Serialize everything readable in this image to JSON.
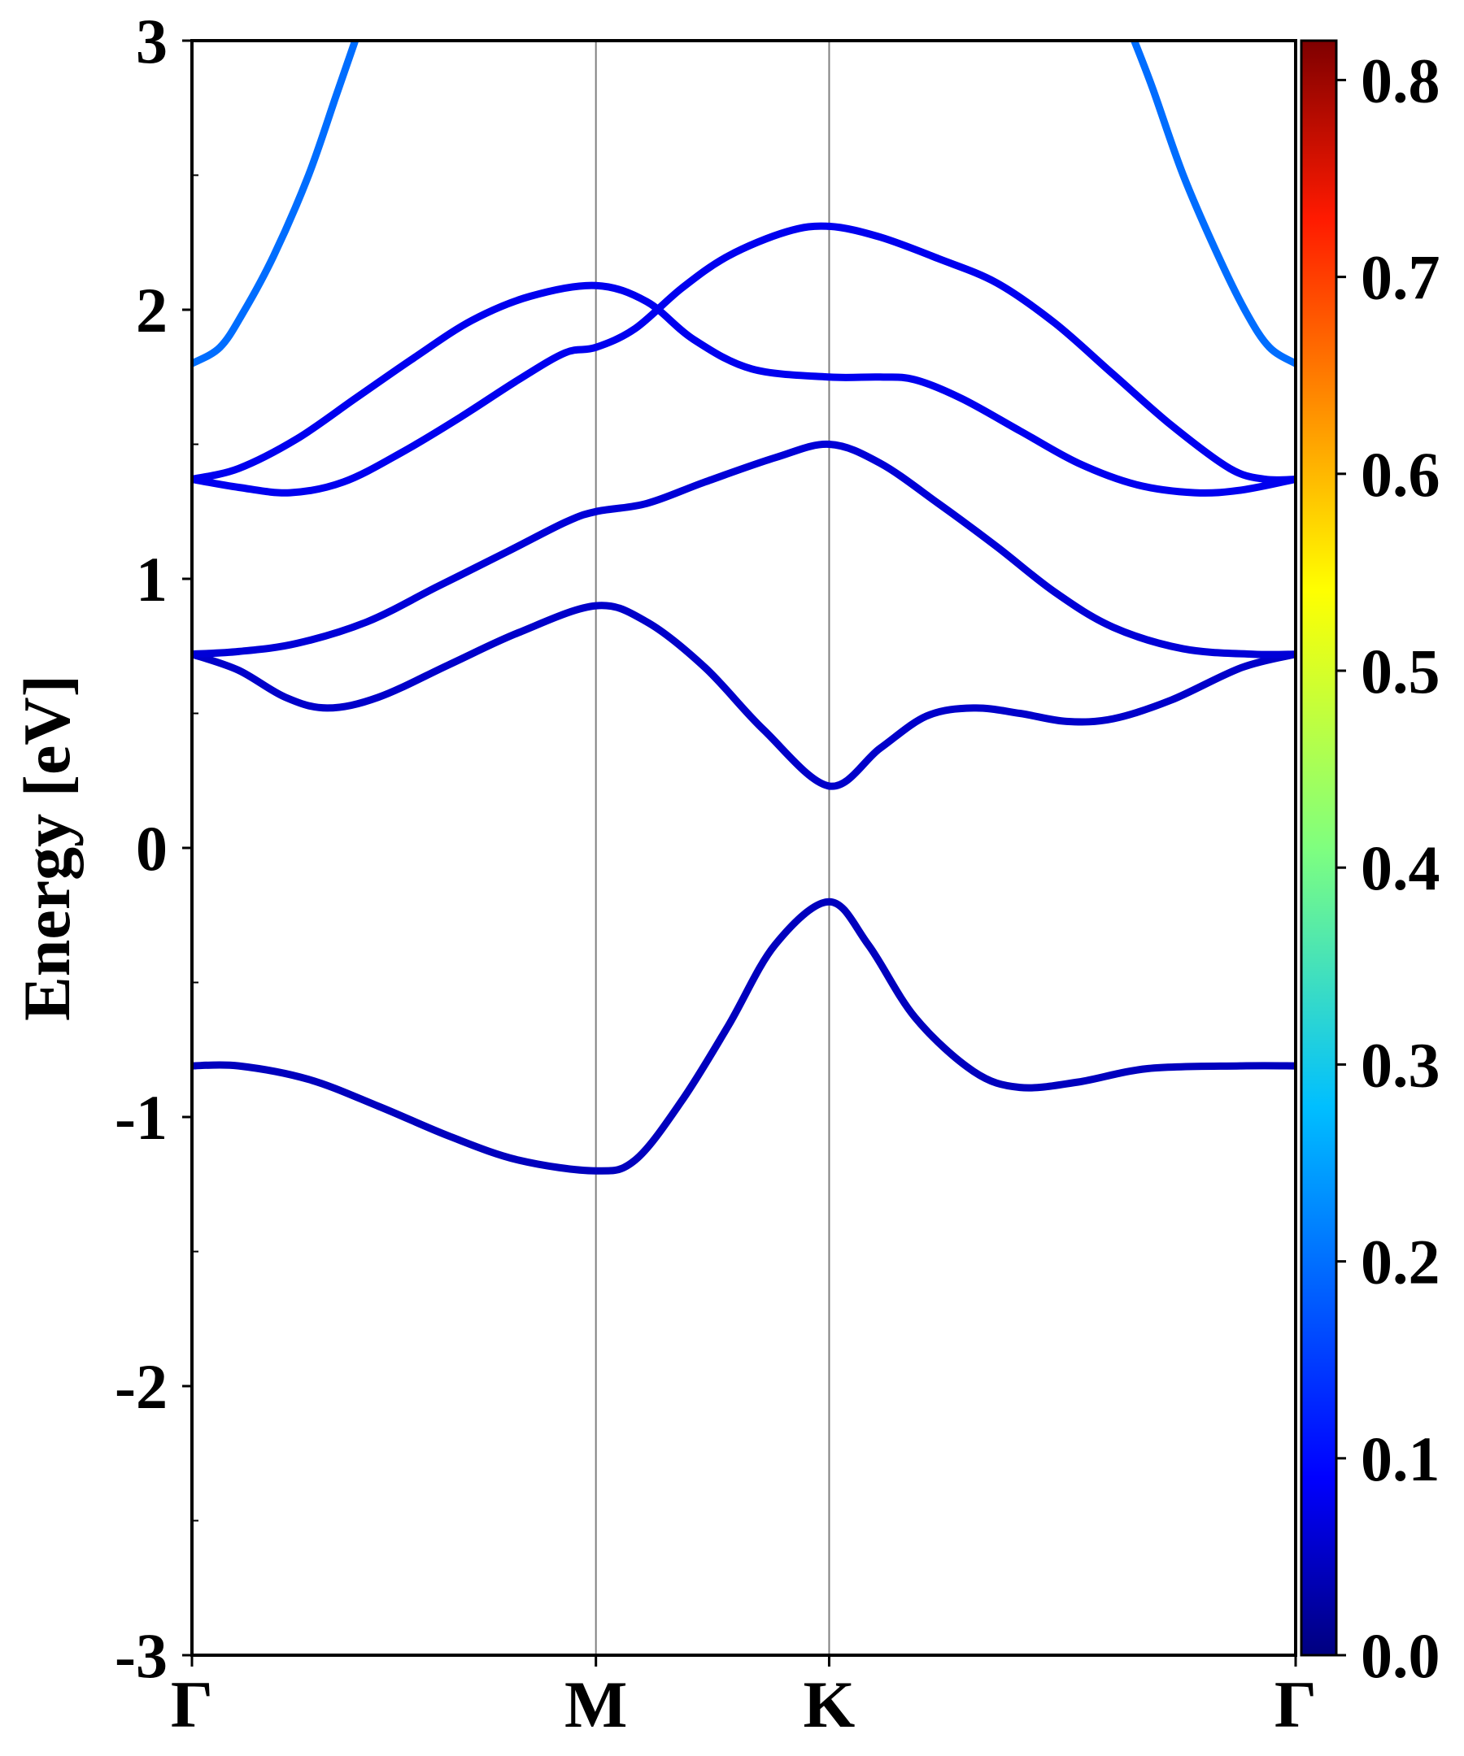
{
  "chart_data": {
    "type": "line",
    "subtype": "electronic band structure (projected, color-mapped weight)",
    "ylabel": "Energy [eV]",
    "xlabel": "",
    "ylim": [
      -3,
      3
    ],
    "y_ticks": [
      {
        "value": 3,
        "label": "3"
      },
      {
        "value": 2,
        "label": "2"
      },
      {
        "value": 1,
        "label": "1"
      },
      {
        "value": 0,
        "label": "0"
      },
      {
        "value": -1,
        "label": "-1"
      },
      {
        "value": -2,
        "label": "-2"
      },
      {
        "value": -3,
        "label": "-3"
      }
    ],
    "y_minor_ticks": [
      2.5,
      1.5,
      0.5,
      -0.5,
      -1.5,
      -2.5
    ],
    "xlim": [
      0,
      4.732
    ],
    "high_symmetry_points": [
      {
        "label": "Γ",
        "x": 0
      },
      {
        "label": "M",
        "x": 1.732
      },
      {
        "label": "K",
        "x": 2.732
      },
      {
        "label": "Γ",
        "x": 4.732
      }
    ],
    "colorbar": {
      "colormap": "jet",
      "range": [
        0.0,
        0.82
      ],
      "ticks": [
        {
          "value": 0.0,
          "label": "0.0"
        },
        {
          "value": 0.1,
          "label": "0.1"
        },
        {
          "value": 0.2,
          "label": "0.2"
        },
        {
          "value": 0.3,
          "label": "0.3"
        },
        {
          "value": 0.4,
          "label": "0.4"
        },
        {
          "value": 0.5,
          "label": "0.5"
        },
        {
          "value": 0.6,
          "label": "0.6"
        },
        {
          "value": 0.7,
          "label": "0.7"
        },
        {
          "value": 0.8,
          "label": "0.8"
        }
      ]
    },
    "series": [
      {
        "weight": 0.05,
        "points": [
          [
            0,
            -0.81
          ],
          [
            0.2,
            -0.81
          ],
          [
            0.5,
            -0.86
          ],
          [
            0.8,
            -0.96
          ],
          [
            1.1,
            -1.07
          ],
          [
            1.4,
            -1.16
          ],
          [
            1.732,
            -1.2
          ],
          [
            1.9,
            -1.16
          ],
          [
            2.1,
            -0.94
          ],
          [
            2.3,
            -0.66
          ],
          [
            2.5,
            -0.36
          ],
          [
            2.732,
            -0.2
          ],
          [
            2.9,
            -0.36
          ],
          [
            3.1,
            -0.63
          ],
          [
            3.35,
            -0.83
          ],
          [
            3.55,
            -0.89
          ],
          [
            3.8,
            -0.87
          ],
          [
            4.1,
            -0.82
          ],
          [
            4.5,
            -0.81
          ],
          [
            4.732,
            -0.81
          ]
        ]
      },
      {
        "weight": 0.06,
        "points": [
          [
            0,
            0.72
          ],
          [
            0.2,
            0.66
          ],
          [
            0.4,
            0.56
          ],
          [
            0.58,
            0.52
          ],
          [
            0.8,
            0.56
          ],
          [
            1.1,
            0.68
          ],
          [
            1.4,
            0.8
          ],
          [
            1.732,
            0.9
          ],
          [
            1.95,
            0.84
          ],
          [
            2.2,
            0.67
          ],
          [
            2.45,
            0.44
          ],
          [
            2.732,
            0.23
          ],
          [
            2.95,
            0.37
          ],
          [
            3.15,
            0.49
          ],
          [
            3.35,
            0.52
          ],
          [
            3.55,
            0.5
          ],
          [
            3.75,
            0.47
          ],
          [
            3.95,
            0.48
          ],
          [
            4.2,
            0.55
          ],
          [
            4.5,
            0.67
          ],
          [
            4.732,
            0.72
          ]
        ]
      },
      {
        "weight": 0.07,
        "points": [
          [
            0,
            0.72
          ],
          [
            0.2,
            0.73
          ],
          [
            0.45,
            0.76
          ],
          [
            0.75,
            0.84
          ],
          [
            1.05,
            0.97
          ],
          [
            1.35,
            1.1
          ],
          [
            1.6,
            1.21
          ],
          [
            1.732,
            1.25
          ],
          [
            1.95,
            1.28
          ],
          [
            2.2,
            1.36
          ],
          [
            2.5,
            1.45
          ],
          [
            2.732,
            1.5
          ],
          [
            2.95,
            1.43
          ],
          [
            3.2,
            1.28
          ],
          [
            3.45,
            1.12
          ],
          [
            3.7,
            0.95
          ],
          [
            3.95,
            0.82
          ],
          [
            4.25,
            0.74
          ],
          [
            4.55,
            0.72
          ],
          [
            4.732,
            0.72
          ]
        ]
      },
      {
        "weight": 0.09,
        "points": [
          [
            0,
            1.37
          ],
          [
            0.2,
            1.34
          ],
          [
            0.42,
            1.32
          ],
          [
            0.65,
            1.36
          ],
          [
            0.9,
            1.47
          ],
          [
            1.15,
            1.6
          ],
          [
            1.4,
            1.74
          ],
          [
            1.6,
            1.84
          ],
          [
            1.732,
            1.86
          ],
          [
            1.9,
            1.93
          ],
          [
            2.1,
            2.08
          ],
          [
            2.3,
            2.2
          ],
          [
            2.55,
            2.29
          ],
          [
            2.732,
            2.31
          ],
          [
            2.95,
            2.27
          ],
          [
            3.2,
            2.19
          ],
          [
            3.45,
            2.1
          ],
          [
            3.7,
            1.95
          ],
          [
            3.95,
            1.76
          ],
          [
            4.2,
            1.57
          ],
          [
            4.45,
            1.41
          ],
          [
            4.6,
            1.37
          ],
          [
            4.732,
            1.37
          ]
        ]
      },
      {
        "weight": 0.09,
        "points": [
          [
            0,
            1.37
          ],
          [
            0.2,
            1.41
          ],
          [
            0.45,
            1.52
          ],
          [
            0.7,
            1.67
          ],
          [
            0.95,
            1.82
          ],
          [
            1.2,
            1.96
          ],
          [
            1.45,
            2.05
          ],
          [
            1.732,
            2.09
          ],
          [
            1.95,
            2.03
          ],
          [
            2.15,
            1.89
          ],
          [
            2.4,
            1.78
          ],
          [
            2.732,
            1.75
          ],
          [
            2.95,
            1.75
          ],
          [
            3.1,
            1.74
          ],
          [
            3.3,
            1.67
          ],
          [
            3.55,
            1.55
          ],
          [
            3.8,
            1.43
          ],
          [
            4.05,
            1.35
          ],
          [
            4.3,
            1.32
          ],
          [
            4.5,
            1.33
          ],
          [
            4.732,
            1.37
          ]
        ]
      },
      {
        "weight": 0.19,
        "points": [
          [
            0,
            1.8
          ],
          [
            0.12,
            1.86
          ],
          [
            0.22,
            1.99
          ],
          [
            0.35,
            2.2
          ],
          [
            0.5,
            2.5
          ],
          [
            0.62,
            2.8
          ],
          [
            0.7,
            3.0
          ]
        ]
      },
      {
        "weight": 0.19,
        "points": [
          [
            4.04,
            3.0
          ],
          [
            4.12,
            2.82
          ],
          [
            4.25,
            2.5
          ],
          [
            4.4,
            2.2
          ],
          [
            4.52,
            1.99
          ],
          [
            4.62,
            1.86
          ],
          [
            4.732,
            1.8
          ]
        ]
      }
    ]
  }
}
